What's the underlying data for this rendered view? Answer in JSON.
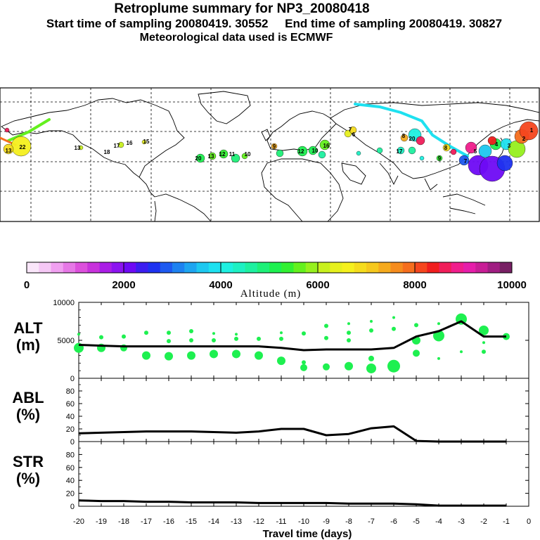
{
  "header": {
    "title": "Retroplume summary for NP3_20080418",
    "sampling_line": "Start time of sampling 20080419. 30552     End time of sampling 20080419. 30827",
    "met_line": "Meteorological data used is ECMWF"
  },
  "colorbar": {
    "labels": [
      "0",
      "2000",
      "4000",
      "6000",
      "8000",
      "10000"
    ],
    "title": "Altitude (m)",
    "colors": [
      "#fae6fa",
      "#f5c8f5",
      "#f0a0f0",
      "#e678e6",
      "#dc50dc",
      "#c832dc",
      "#aa1ee6",
      "#8c14f0",
      "#6e0af5",
      "#3c1ef0",
      "#1e32f0",
      "#1e5af0",
      "#1e82f0",
      "#1ea5f0",
      "#1ec8f0",
      "#1ee1f0",
      "#1ef0e1",
      "#1ef0c3",
      "#1ef0a0",
      "#1ef078",
      "#1ef050",
      "#32f032",
      "#64f01e",
      "#96f01e",
      "#c8f01e",
      "#e6f01e",
      "#f5f01e",
      "#f5dc1e",
      "#f5c81e",
      "#f5aa1e",
      "#f58c1e",
      "#f56e1e",
      "#f5461e",
      "#f01e1e",
      "#f01e5a",
      "#f01e8c",
      "#e61eaa",
      "#c81e96",
      "#a01e82",
      "#782064"
    ]
  },
  "map": {
    "labels": [
      "22",
      "13",
      "18",
      "17",
      "16",
      "15",
      "20",
      "12",
      "11",
      "10",
      "9",
      "8",
      "7",
      "6",
      "5",
      "4",
      "3",
      "2",
      "1"
    ]
  },
  "chart_data": [
    {
      "type": "line",
      "panel": "ALT",
      "ylabel_lines": [
        "ALT",
        "(m)"
      ],
      "ylim": [
        0,
        10000
      ],
      "yticks": [
        "0",
        "5000",
        "10000"
      ],
      "x": [
        -20,
        -19,
        -18,
        -17,
        -16,
        -15,
        -14,
        -13,
        -12,
        -11,
        -10,
        -9,
        -8,
        -7,
        -6,
        -5,
        -4,
        -3,
        -2,
        -1
      ],
      "values": [
        4400,
        4300,
        4200,
        4200,
        4200,
        4200,
        4200,
        4200,
        4200,
        4000,
        3700,
        3800,
        3800,
        3800,
        4000,
        5500,
        6200,
        7500,
        5500,
        5500
      ],
      "scatter_color": "#1ef050",
      "scatter": [
        {
          "x": -20,
          "y": 4000,
          "s": 7
        },
        {
          "x": -20,
          "y": 5800,
          "s": 2
        },
        {
          "x": -19,
          "y": 4000,
          "s": 6
        },
        {
          "x": -19,
          "y": 5400,
          "s": 3
        },
        {
          "x": -18,
          "y": 4000,
          "s": 5
        },
        {
          "x": -18,
          "y": 5500,
          "s": 3
        },
        {
          "x": -17,
          "y": 3000,
          "s": 6
        },
        {
          "x": -17,
          "y": 6000,
          "s": 3
        },
        {
          "x": -16,
          "y": 2900,
          "s": 6
        },
        {
          "x": -16,
          "y": 4900,
          "s": 3
        },
        {
          "x": -16,
          "y": 6000,
          "s": 3
        },
        {
          "x": -15,
          "y": 3000,
          "s": 6
        },
        {
          "x": -15,
          "y": 5000,
          "s": 3
        },
        {
          "x": -15,
          "y": 6200,
          "s": 3
        },
        {
          "x": -14,
          "y": 3200,
          "s": 6
        },
        {
          "x": -14,
          "y": 5000,
          "s": 3
        },
        {
          "x": -14,
          "y": 5900,
          "s": 2
        },
        {
          "x": -13,
          "y": 3200,
          "s": 6
        },
        {
          "x": -13,
          "y": 5200,
          "s": 3
        },
        {
          "x": -13,
          "y": 5800,
          "s": 2
        },
        {
          "x": -12,
          "y": 3000,
          "s": 6
        },
        {
          "x": -12,
          "y": 5200,
          "s": 3
        },
        {
          "x": -11,
          "y": 2300,
          "s": 6
        },
        {
          "x": -11,
          "y": 5200,
          "s": 3
        },
        {
          "x": -11,
          "y": 6000,
          "s": 2
        },
        {
          "x": -10,
          "y": 1400,
          "s": 5
        },
        {
          "x": -10,
          "y": 2100,
          "s": 3
        },
        {
          "x": -10,
          "y": 5900,
          "s": 3
        },
        {
          "x": -9,
          "y": 1500,
          "s": 5
        },
        {
          "x": -9,
          "y": 5300,
          "s": 3
        },
        {
          "x": -9,
          "y": 6900,
          "s": 3
        },
        {
          "x": -8,
          "y": 1600,
          "s": 6
        },
        {
          "x": -8,
          "y": 5000,
          "s": 3
        },
        {
          "x": -8,
          "y": 6000,
          "s": 3
        },
        {
          "x": -8,
          "y": 7200,
          "s": 2
        },
        {
          "x": -7,
          "y": 1300,
          "s": 7
        },
        {
          "x": -7,
          "y": 2600,
          "s": 4
        },
        {
          "x": -7,
          "y": 6300,
          "s": 3
        },
        {
          "x": -7,
          "y": 7500,
          "s": 2
        },
        {
          "x": -6,
          "y": 1600,
          "s": 9
        },
        {
          "x": -6,
          "y": 6500,
          "s": 3
        },
        {
          "x": -6,
          "y": 8000,
          "s": 2
        },
        {
          "x": -5,
          "y": 3300,
          "s": 5
        },
        {
          "x": -5,
          "y": 5000,
          "s": 6
        },
        {
          "x": -5,
          "y": 7000,
          "s": 3
        },
        {
          "x": -4,
          "y": 2600,
          "s": 2
        },
        {
          "x": -4,
          "y": 5600,
          "s": 8
        },
        {
          "x": -4,
          "y": 7200,
          "s": 2
        },
        {
          "x": -3,
          "y": 3500,
          "s": 2
        },
        {
          "x": -3,
          "y": 7800,
          "s": 8
        },
        {
          "x": -2,
          "y": 3500,
          "s": 3
        },
        {
          "x": -2,
          "y": 4700,
          "s": 2
        },
        {
          "x": -2,
          "y": 6300,
          "s": 7
        },
        {
          "x": -1,
          "y": 5500,
          "s": 5
        }
      ]
    },
    {
      "type": "line",
      "panel": "ABL",
      "ylabel_lines": [
        "ABL",
        "(%)"
      ],
      "ylim": [
        0,
        100
      ],
      "yticks": [
        "0",
        "20",
        "40",
        "60",
        "80"
      ],
      "x": [
        -20,
        -19,
        -18,
        -17,
        -16,
        -15,
        -14,
        -13,
        -12,
        -11,
        -10,
        -9,
        -8,
        -7,
        -6,
        -5,
        -4,
        -3,
        -2,
        -1
      ],
      "values": [
        13,
        14,
        15,
        16,
        16,
        16,
        15,
        14,
        16,
        20,
        20,
        10,
        12,
        21,
        24,
        1,
        0,
        0,
        0,
        0
      ]
    },
    {
      "type": "line",
      "panel": "STR",
      "ylabel_lines": [
        "STR",
        "(%)"
      ],
      "ylim": [
        0,
        100
      ],
      "yticks": [
        "0",
        "20",
        "40",
        "60",
        "80"
      ],
      "x": [
        -20,
        -19,
        -18,
        -17,
        -16,
        -15,
        -14,
        -13,
        -12,
        -11,
        -10,
        -9,
        -8,
        -7,
        -6,
        -5,
        -4,
        -3,
        -2,
        -1
      ],
      "values": [
        9,
        8,
        8,
        7,
        7,
        6,
        6,
        6,
        5,
        5,
        5,
        5,
        4,
        4,
        4,
        3,
        1,
        1,
        1,
        1
      ],
      "xticks": [
        "-20",
        "-19",
        "-18",
        "-17",
        "-16",
        "-15",
        "-14",
        "-13",
        "-12",
        "-11",
        "-10",
        "-9",
        "-8",
        "-7",
        "-6",
        "-5",
        "-4",
        "-3",
        "-2",
        "-1",
        "0"
      ],
      "xlabel": "Travel time (days)"
    }
  ]
}
